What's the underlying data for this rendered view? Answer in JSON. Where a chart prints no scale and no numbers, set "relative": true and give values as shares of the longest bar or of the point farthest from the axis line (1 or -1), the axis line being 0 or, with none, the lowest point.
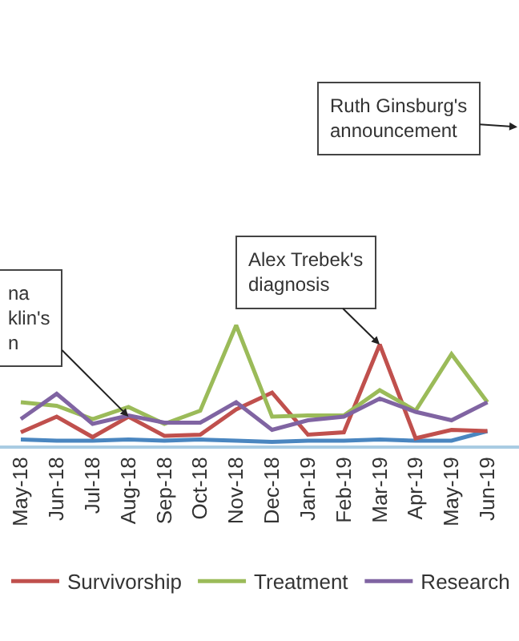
{
  "chart_data": {
    "type": "line",
    "relative": true,
    "tick_labels": "x",
    "grid": false,
    "legend": "bottom",
    "marker": "none",
    "categories": [
      "May-18",
      "Jun-18",
      "Jul-18",
      "Aug-18",
      "Sep-18",
      "Oct-18",
      "Nov-18",
      "Dec-18",
      "Jan-19",
      "Feb-19",
      "Mar-19",
      "Apr-19",
      "May-19",
      "Jun-19"
    ],
    "series": [
      {
        "color": "#4a86c0",
        "values": [
          0.05,
          0.04,
          0.04,
          0.05,
          0.04,
          0.05,
          0.04,
          0.03,
          0.04,
          0.04,
          0.05,
          0.04,
          0.04,
          0.12
        ]
      },
      {
        "name": "Survivorship",
        "color": "#c0504d",
        "values": [
          0.11,
          0.24,
          0.07,
          0.24,
          0.08,
          0.09,
          0.3,
          0.44,
          0.09,
          0.11,
          0.84,
          0.06,
          0.13,
          0.12
        ]
      },
      {
        "name": "Treatment",
        "color": "#9bbb59",
        "values": [
          0.36,
          0.33,
          0.22,
          0.32,
          0.18,
          0.29,
          1,
          0.24,
          0.25,
          0.25,
          0.46,
          0.29,
          0.76,
          0.36
        ]
      },
      {
        "name": "Research",
        "color": "#8064a2",
        "values": [
          0.22,
          0.43,
          0.18,
          0.25,
          0.19,
          0.19,
          0.36,
          0.13,
          0.21,
          0.24,
          0.39,
          0.28,
          0.21,
          0.36
        ]
      }
    ],
    "annotations": [
      "Ruth Ginsburg's\nannouncement",
      {
        "text": "Alex Trebek's\ndiagnosis",
        "x": "Mar-19",
        "y": 0.84
      },
      {
        "text": "na\nklin's\nn",
        "x": "Aug-18",
        "y": 0.24
      }
    ]
  }
}
